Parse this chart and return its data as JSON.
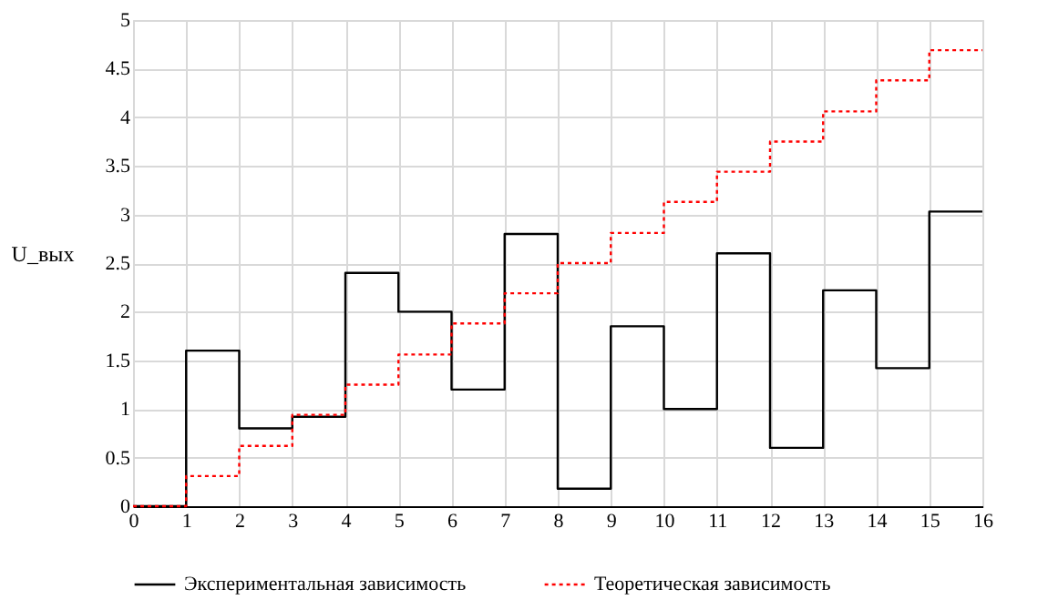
{
  "chart_data": {
    "type": "step",
    "ylabel": "U_вых",
    "x": [
      0,
      1,
      2,
      3,
      4,
      5,
      6,
      7,
      8,
      9,
      10,
      11,
      12,
      13,
      14,
      15,
      16
    ],
    "series": [
      {
        "name": "Экспериментальная зависимость",
        "color": "#000000",
        "line_style": "solid",
        "values": [
          0,
          1.6,
          0.8,
          0.92,
          2.4,
          2.0,
          1.2,
          2.8,
          0.18,
          1.85,
          1.0,
          2.6,
          0.6,
          2.22,
          1.42,
          3.03,
          3.03
        ]
      },
      {
        "name": "Теоретическая зависимость",
        "color": "#ff0000",
        "line_style": "dotted",
        "values": [
          0,
          0.31,
          0.62,
          0.94,
          1.25,
          1.56,
          1.88,
          2.19,
          2.5,
          2.81,
          3.13,
          3.44,
          3.75,
          4.06,
          4.38,
          4.69,
          4.69
        ]
      }
    ],
    "xlim": [
      0,
      16
    ],
    "xticks": [
      0,
      1,
      2,
      3,
      4,
      5,
      6,
      7,
      8,
      9,
      10,
      11,
      12,
      13,
      14,
      15,
      16
    ],
    "ylim": [
      0,
      5
    ],
    "yticks": [
      0,
      0.5,
      1,
      1.5,
      2,
      2.5,
      3,
      3.5,
      4,
      4.5,
      5
    ],
    "grid": true,
    "legend": "bottom"
  }
}
